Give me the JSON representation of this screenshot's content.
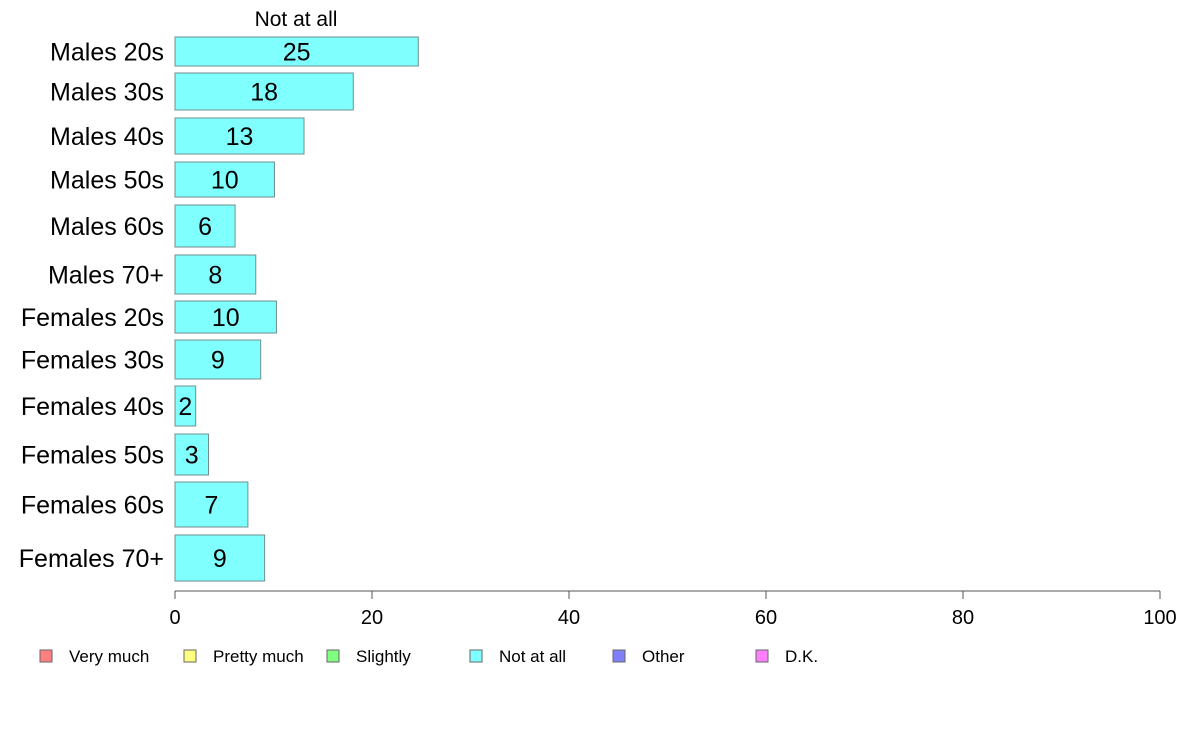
{
  "chart_data": {
    "type": "bar",
    "orientation": "horizontal",
    "stacked": true,
    "categories": [
      "Males 20s",
      "Males 30s",
      "Males 40s",
      "Males 50s",
      "Males 60s",
      "Males 70+",
      "Females 20s",
      "Females 30s",
      "Females 40s",
      "Females 50s",
      "Females 60s",
      "Females 70+"
    ],
    "series": [
      {
        "name": "Not at all",
        "color": "#80ffff",
        "values": [
          25,
          18,
          13,
          10,
          6,
          8,
          10,
          9,
          2,
          3,
          7,
          9
        ],
        "bar_values": [
          24.7,
          18.1,
          13.1,
          10.1,
          6.1,
          8.2,
          10.3,
          8.7,
          2.1,
          3.4,
          7.4,
          9.1
        ]
      }
    ],
    "series_title": "Not at all",
    "xlim": [
      0,
      100
    ],
    "xticks": [
      "0",
      "20",
      "40",
      "60",
      "80",
      "100"
    ],
    "grid": false,
    "legend_position": "bottom",
    "legend": [
      {
        "label": "Very much",
        "color": "#ff8080"
      },
      {
        "label": "Pretty much",
        "color": "#ffff80"
      },
      {
        "label": "Slightly",
        "color": "#80ff80"
      },
      {
        "label": "Not at all",
        "color": "#80ffff"
      },
      {
        "label": "Other",
        "color": "#8080ff"
      },
      {
        "label": "D.K.",
        "color": "#ff80ff"
      }
    ]
  }
}
